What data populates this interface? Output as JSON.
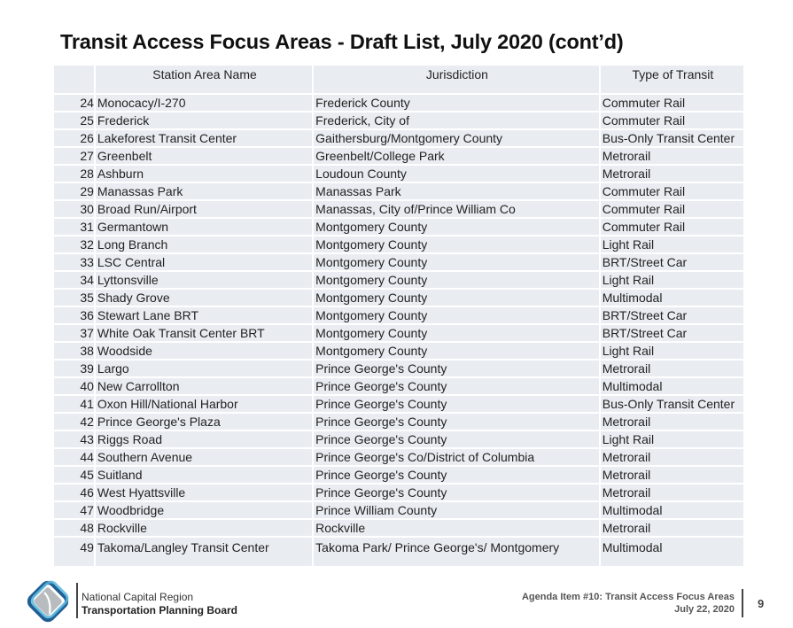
{
  "slide": {
    "title": "Transit Access Focus Areas - Draft List, July 2020 (cont’d)"
  },
  "table": {
    "headers": [
      "",
      "Station Area Name",
      "Jurisdiction",
      "Type of Transit"
    ],
    "rows": [
      {
        "num": "24",
        "name": "Monocacy/I-270",
        "jurisdiction": "Frederick County",
        "type": "Commuter Rail"
      },
      {
        "num": "25",
        "name": "Frederick",
        "jurisdiction": "Frederick, City of",
        "type": "Commuter Rail"
      },
      {
        "num": "26",
        "name": "Lakeforest Transit Center",
        "jurisdiction": "Gaithersburg/Montgomery County",
        "type": "Bus-Only Transit Center"
      },
      {
        "num": "27",
        "name": "Greenbelt",
        "jurisdiction": "Greenbelt/College Park",
        "type": "Metrorail"
      },
      {
        "num": "28",
        "name": "Ashburn",
        "jurisdiction": "Loudoun County",
        "type": "Metrorail"
      },
      {
        "num": "29",
        "name": "Manassas Park",
        "jurisdiction": "Manassas Park",
        "type": "Commuter Rail"
      },
      {
        "num": "30",
        "name": "Broad Run/Airport",
        "jurisdiction": "Manassas, City of/Prince William Co",
        "type": "Commuter Rail"
      },
      {
        "num": "31",
        "name": "Germantown",
        "jurisdiction": "Montgomery County",
        "type": "Commuter Rail"
      },
      {
        "num": "32",
        "name": "Long Branch",
        "jurisdiction": "Montgomery County",
        "type": "Light Rail"
      },
      {
        "num": "33",
        "name": "LSC Central",
        "jurisdiction": "Montgomery County",
        "type": "BRT/Street Car"
      },
      {
        "num": "34",
        "name": "Lyttonsville",
        "jurisdiction": "Montgomery County",
        "type": "Light Rail"
      },
      {
        "num": "35",
        "name": "Shady Grove",
        "jurisdiction": "Montgomery County",
        "type": "Multimodal"
      },
      {
        "num": "36",
        "name": "Stewart Lane BRT",
        "jurisdiction": "Montgomery County",
        "type": "BRT/Street Car"
      },
      {
        "num": "37",
        "name": "White Oak Transit Center BRT",
        "jurisdiction": "Montgomery County",
        "type": "BRT/Street Car"
      },
      {
        "num": "38",
        "name": "Woodside",
        "jurisdiction": "Montgomery County",
        "type": "Light Rail"
      },
      {
        "num": "39",
        "name": "Largo",
        "jurisdiction": "Prince George's County",
        "type": "Metrorail"
      },
      {
        "num": "40",
        "name": "New Carrollton",
        "jurisdiction": "Prince George's County",
        "type": "Multimodal"
      },
      {
        "num": "41",
        "name": "Oxon Hill/National Harbor",
        "jurisdiction": "Prince George's County",
        "type": "Bus-Only Transit Center"
      },
      {
        "num": "42",
        "name": "Prince George's Plaza",
        "jurisdiction": "Prince George's County",
        "type": "Metrorail"
      },
      {
        "num": "43",
        "name": "Riggs Road",
        "jurisdiction": "Prince George's County",
        "type": "Light Rail"
      },
      {
        "num": "44",
        "name": "Southern Avenue",
        "jurisdiction": "Prince George's Co/District of Columbia",
        "type": "Metrorail"
      },
      {
        "num": "45",
        "name": "Suitland",
        "jurisdiction": "Prince George's County",
        "type": "Metrorail"
      },
      {
        "num": "46",
        "name": "West Hyattsville",
        "jurisdiction": "Prince George's County",
        "type": "Metrorail"
      },
      {
        "num": "47",
        "name": "Woodbridge",
        "jurisdiction": "Prince William County",
        "type": "Multimodal"
      },
      {
        "num": "48",
        "name": "Rockville",
        "jurisdiction": "Rockville",
        "type": "Metrorail"
      },
      {
        "num": "49",
        "name": "Takoma/Langley Transit Center",
        "jurisdiction": "Takoma Park/ Prince George's/ Montgomery",
        "type": "Multimodal"
      }
    ]
  },
  "footer": {
    "org_line1": "National Capital Region",
    "org_line2": "Transportation Planning Board",
    "agenda_line1": "Agenda Item #10: Transit Access Focus Areas",
    "agenda_line2": "July 22, 2020",
    "page_number": "9",
    "logo_icon": "tpb-logo-icon",
    "colors": {
      "logo_dark_blue": "#1f5f93",
      "logo_light_blue": "#5bb6dd",
      "logo_gray": "#b9bcbf"
    }
  }
}
